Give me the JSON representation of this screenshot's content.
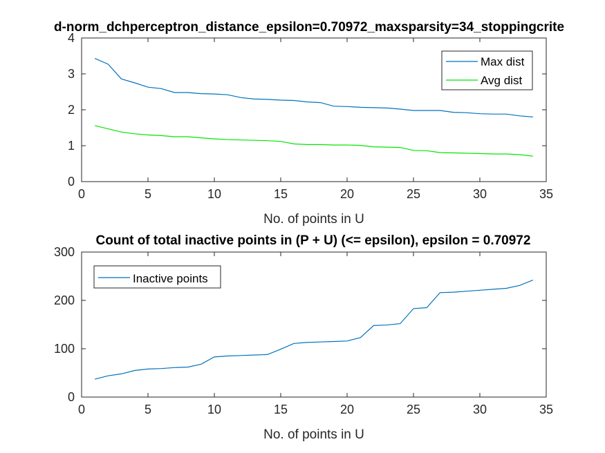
{
  "chart_data": [
    {
      "type": "line",
      "title": "d-norm_dchperceptron_distance_epsilon=0.70972_maxsparsity=34_stoppingcrite",
      "xlabel": "No. of points in U",
      "ylabel": "",
      "xlim": [
        0,
        35
      ],
      "ylim": [
        0,
        4
      ],
      "xticks": [
        0,
        5,
        10,
        15,
        20,
        25,
        30,
        35
      ],
      "yticks": [
        0,
        1,
        2,
        3,
        4
      ],
      "grid": false,
      "legend_position": "top-right",
      "x": [
        1,
        2,
        3,
        4,
        5,
        6,
        7,
        8,
        9,
        10,
        11,
        12,
        13,
        14,
        15,
        16,
        17,
        18,
        19,
        20,
        21,
        22,
        23,
        24,
        25,
        26,
        27,
        28,
        29,
        30,
        31,
        32,
        33,
        34
      ],
      "series": [
        {
          "name": "Max dist",
          "color": "#0072BD",
          "values": [
            3.43,
            3.27,
            2.86,
            2.75,
            2.63,
            2.59,
            2.48,
            2.48,
            2.45,
            2.44,
            2.42,
            2.34,
            2.3,
            2.29,
            2.27,
            2.26,
            2.22,
            2.2,
            2.1,
            2.09,
            2.07,
            2.06,
            2.05,
            2.02,
            1.98,
            1.98,
            1.98,
            1.93,
            1.92,
            1.89,
            1.88,
            1.88,
            1.83,
            1.8
          ]
        },
        {
          "name": "Avg dist",
          "color": "#00E600",
          "values": [
            1.56,
            1.47,
            1.38,
            1.33,
            1.3,
            1.28,
            1.25,
            1.25,
            1.22,
            1.19,
            1.17,
            1.16,
            1.15,
            1.14,
            1.12,
            1.05,
            1.03,
            1.03,
            1.02,
            1.02,
            1.01,
            0.97,
            0.96,
            0.95,
            0.87,
            0.86,
            0.81,
            0.8,
            0.79,
            0.78,
            0.77,
            0.77,
            0.75,
            0.71
          ]
        }
      ]
    },
    {
      "type": "line",
      "title": "Count of total inactive points in (P + U) (<= epsilon), epsilon = 0.70972",
      "xlabel": "No. of points in U",
      "ylabel": "",
      "xlim": [
        0,
        35
      ],
      "ylim": [
        0,
        300
      ],
      "xticks": [
        0,
        5,
        10,
        15,
        20,
        25,
        30,
        35
      ],
      "yticks": [
        0,
        100,
        200,
        300
      ],
      "grid": false,
      "legend_position": "top-left",
      "x": [
        1,
        2,
        3,
        4,
        5,
        6,
        7,
        8,
        9,
        10,
        11,
        12,
        13,
        14,
        15,
        16,
        17,
        18,
        19,
        20,
        21,
        22,
        23,
        24,
        25,
        26,
        27,
        28,
        29,
        30,
        31,
        32,
        33,
        34
      ],
      "series": [
        {
          "name": "Inactive points",
          "color": "#0072BD",
          "values": [
            37,
            44,
            48,
            55,
            58,
            59,
            61,
            62,
            68,
            83,
            85,
            86,
            87,
            88,
            99,
            111,
            113,
            114,
            115,
            116,
            123,
            148,
            149,
            152,
            183,
            185,
            216,
            217,
            219,
            221,
            223,
            225,
            231,
            242
          ]
        }
      ]
    }
  ]
}
